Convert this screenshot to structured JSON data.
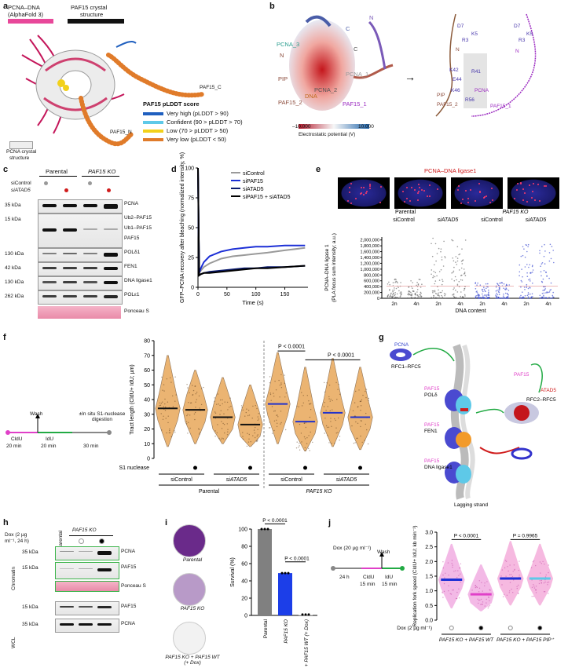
{
  "panel_a": {
    "letter": "a",
    "title_line1": "PCNA–DNA",
    "title_line2": "(AlphaFold 3)",
    "crystal_label": "PAF15 crystal",
    "crystal_label2": "structure",
    "pcna_crystal": "PCNA crystal",
    "pcna_crystal2": "structure",
    "paf15_c": "PAF15_C",
    "paf15_n": "PAF15_N",
    "legend_title": "PAF15 pLDDT score",
    "legend": [
      {
        "label": "Very high (pLDDT > 90)",
        "color": "#1f5fbf"
      },
      {
        "label": "Confident (90 > pLDDT > 70)",
        "color": "#5ec9e8"
      },
      {
        "label": "Low (70 > pLDDT > 50)",
        "color": "#f2d11b"
      },
      {
        "label": "Very low (pLDDT < 50)",
        "color": "#e07b2a"
      }
    ]
  },
  "panel_b": {
    "letter": "b",
    "labels": [
      "PCNA_3",
      "PCNA_1",
      "PCNA_2",
      "PIP",
      "DNA",
      "PAF15_2",
      "PAF15_1",
      "N",
      "N",
      "C",
      "C"
    ],
    "scale_min": "–10.000",
    "scale_max": "10.000",
    "scale_label": "Electrostatic potential (V)",
    "residues": [
      "D7",
      "K5",
      "R3",
      "E44",
      "K42",
      "R41",
      "K46",
      "R56",
      "D7",
      "K5",
      "R3"
    ],
    "right_labels": [
      "PIP",
      "PAF15_2",
      "PAF15_1",
      "PCNA",
      "N",
      "N"
    ]
  },
  "panel_c": {
    "letter": "c",
    "group_parental": "Parental",
    "group_ko": "PAF15 KO",
    "row1": "siControl",
    "row2": "siATAD5",
    "kda": [
      "35 kDa",
      "15 kDa",
      "130 kDa",
      "42 kDa",
      "130 kDa",
      "262 kDa"
    ],
    "labels": [
      "PCNA",
      "Ub2–PAF15",
      "Ub1–PAF15",
      "PAF15",
      "POLδ1",
      "FEN1",
      "DNA ligase1",
      "POLε1",
      "Ponceau S"
    ]
  },
  "panel_d": {
    "letter": "d",
    "ylabel": "GFP–PCNA recovery after bleaching (normalized intensity, %)",
    "xlabel": "Time (s)"
  },
  "panel_e": {
    "letter": "e",
    "title": "PCNA–DNA ligase1",
    "group_parental": "Parental",
    "group_ko": "PAF15 KO",
    "conds": [
      "siControl",
      "siATAD5",
      "siControl",
      "siATAD5"
    ],
    "ylabel1": "PCNA–DNA ligase 1",
    "ylabel2": "(PLA focus sum intensity; a.u.)",
    "xlabel": "DNA content",
    "xticks": [
      "2n",
      "4n",
      "2n",
      "4n",
      "2n",
      "4n",
      "2n",
      "4n"
    ]
  },
  "panel_f": {
    "letter": "f",
    "wash": "Wash",
    "insitu": "±In situ S1-nuclease digestion",
    "cldu": "CldU",
    "idu": "IdU",
    "t1": "20 min",
    "t2": "20 min",
    "t3": "30 min",
    "ylabel": "Tract length (CldU+ IdU; µm)",
    "s1": "S1 nuclease",
    "conds": [
      "siControl",
      "siATAD5",
      "siControl",
      "siATAD5"
    ],
    "group_parental": "Parental",
    "group_ko": "PAF15 KO",
    "p1": "P < 0.0001",
    "p2": "P < 0.0001"
  },
  "panel_g": {
    "letter": "g",
    "labels": [
      "PCNA",
      "RFC1–RFC5",
      "PAF15",
      "POLδ",
      "PAF15",
      "FEN1",
      "PAF15",
      "DNA ligase1",
      "PAF15",
      "ATAD5",
      "RFC2–RFC5",
      "Lagging strand"
    ]
  },
  "panel_h": {
    "letter": "h",
    "dox": "Dox (2 µg ml⁻¹, 24 h)",
    "parental": "Parental",
    "ko": "PAF15 KO",
    "chromatin": "Chromatin",
    "wcl": "WCL",
    "kda": [
      "35 kDa",
      "15 kDa",
      "15 kDa",
      "35 kDa"
    ],
    "labels": [
      "PCNA",
      "PAF15",
      "Ponceau S",
      "PAF15",
      "PCNA"
    ]
  },
  "panel_i": {
    "letter": "i",
    "dish_labels": [
      "Parental",
      "PAF15 KO",
      "PAF15 KO + PAF15 WT (+ Dox)"
    ],
    "ylabel": "Survival (%)",
    "p1": "P < 0.0001",
    "p2": "P < 0.0001",
    "xcats": [
      "Parental",
      "PAF15 KO",
      "PAF15 KO + PAF15 WT (+ Dox)"
    ]
  },
  "panel_j": {
    "letter": "j",
    "dox": "Dox (20 µg ml⁻¹)",
    "wash": "Wash",
    "t1": "24 h",
    "cldu": "CldU",
    "idu": "IdU",
    "t2": "15 min",
    "t3": "15 min",
    "ylabel": "Replication fork speed (CldU+ IdU; kb min⁻¹)",
    "dox2": "Dox (2 µg ml⁻¹)",
    "p1": "P < 0.0001",
    "p2": "P = 0.9965",
    "grp1": "PAF15 KO + PAF15 WT",
    "grp2": "PAF15 KO + PAF15 PIP⁺"
  },
  "chart_data": [
    {
      "panel": "d",
      "type": "line",
      "xlabel": "Time (s)",
      "ylabel": "GFP–PCNA recovery after bleaching (normalized intensity, %)",
      "xlim": [
        0,
        190
      ],
      "ylim": [
        0,
        100
      ],
      "xticks": [
        0,
        50,
        100,
        150
      ],
      "yticks": [
        0,
        25,
        50,
        75,
        100
      ],
      "series": [
        {
          "name": "siControl",
          "color": "#9a9a9a",
          "x": [
            0,
            2,
            5,
            10,
            20,
            40,
            60,
            80,
            100,
            120,
            150,
            185
          ],
          "y": [
            100,
            12,
            14,
            17,
            20,
            24,
            26,
            27,
            28,
            29,
            31,
            33
          ]
        },
        {
          "name": "siPAF15",
          "color": "#1c2fd6",
          "x": [
            0,
            2,
            5,
            10,
            20,
            40,
            60,
            80,
            100,
            120,
            150,
            185
          ],
          "y": [
            100,
            12,
            16,
            21,
            26,
            30,
            32,
            33,
            34,
            34,
            35,
            35
          ]
        },
        {
          "name": "siATAD5",
          "color": "#0a1a6e",
          "x": [
            0,
            2,
            5,
            10,
            20,
            40,
            60,
            80,
            100,
            120,
            150,
            185
          ],
          "y": [
            100,
            10,
            11,
            12,
            13,
            14,
            15,
            16,
            16,
            17,
            17,
            18
          ]
        },
        {
          "name": "siPAF15 + siATAD5",
          "color": "#000000",
          "x": [
            0,
            2,
            5,
            10,
            20,
            40,
            60,
            80,
            100,
            120,
            150,
            185
          ],
          "y": [
            100,
            10,
            11,
            12,
            12,
            13,
            14,
            15,
            16,
            16,
            17,
            18
          ]
        }
      ]
    },
    {
      "panel": "e",
      "type": "scatter",
      "xlabel": "DNA content",
      "ylabel": "PCNA–DNA ligase 1 (PLA focus sum intensity; a.u.)",
      "ylim": [
        0,
        2100000
      ],
      "yticks": [
        0,
        200000,
        400000,
        600000,
        800000,
        1000000,
        1200000,
        1400000,
        1600000,
        1800000,
        2000000
      ],
      "ytick_labels": [
        "0",
        "200,000",
        "400,000",
        "600,000",
        "800,000",
        "1,000,000",
        "1,200,000",
        "1,400,000",
        "1,600,000",
        "1,800,000",
        "2,000,000"
      ],
      "threshold": 420000,
      "groups": [
        {
          "name": "Parental siControl",
          "color": "#555555",
          "max": 700000
        },
        {
          "name": "Parental siATAD5",
          "color": "#555555",
          "max": 2100000
        },
        {
          "name": "PAF15 KO siControl",
          "color": "#2233cc",
          "max": 550000
        },
        {
          "name": "PAF15 KO siATAD5",
          "color": "#2233cc",
          "max": 1900000
        }
      ]
    },
    {
      "panel": "f",
      "type": "violin",
      "ylabel": "Tract length (CldU+ IdU; µm)",
      "ylim": [
        0,
        80
      ],
      "yticks": [
        0,
        10,
        20,
        30,
        40,
        50,
        60,
        70,
        80
      ],
      "s1_nuclease": [
        false,
        true,
        false,
        true,
        false,
        true,
        false,
        true
      ],
      "medians": [
        34,
        33,
        28,
        23,
        37,
        25,
        31,
        28
      ],
      "ranges": [
        [
          8,
          70
        ],
        [
          10,
          60
        ],
        [
          10,
          55
        ],
        [
          8,
          50
        ],
        [
          10,
          72
        ],
        [
          5,
          62
        ],
        [
          8,
          68
        ],
        [
          6,
          62
        ]
      ],
      "median_colors": [
        "#111111",
        "#111111",
        "#111111",
        "#111111",
        "#2233cc",
        "#2233cc",
        "#2233cc",
        "#2233cc"
      ]
    },
    {
      "panel": "i",
      "type": "bar",
      "ylabel": "Survival (%)",
      "categories": [
        "Parental",
        "PAF15 KO",
        "PAF15 KO + PAF15 WT (+ Dox)"
      ],
      "values": [
        100,
        49,
        1
      ],
      "colors": [
        "#808080",
        "#1c3ee8",
        "#e0e0e0"
      ],
      "ylim": [
        0,
        100
      ],
      "yticks": [
        0,
        20,
        40,
        60,
        80,
        100
      ]
    },
    {
      "panel": "j",
      "type": "violin",
      "ylabel": "Replication fork speed (CldU+ IdU; kb min⁻¹)",
      "ylim": [
        0,
        3
      ],
      "yticks": [
        0,
        0.5,
        1.0,
        1.5,
        2.0,
        2.5,
        3.0
      ],
      "dox": [
        false,
        true,
        false,
        true
      ],
      "medians": [
        1.38,
        0.88,
        1.42,
        1.42
      ],
      "ranges": [
        [
          0.4,
          2.6
        ],
        [
          0.3,
          1.9
        ],
        [
          0.5,
          2.7
        ],
        [
          0.5,
          2.6
        ]
      ],
      "median_colors": [
        "#1c2fd6",
        "#e040c8",
        "#1c2fd6",
        "#5ec9e8"
      ]
    }
  ]
}
